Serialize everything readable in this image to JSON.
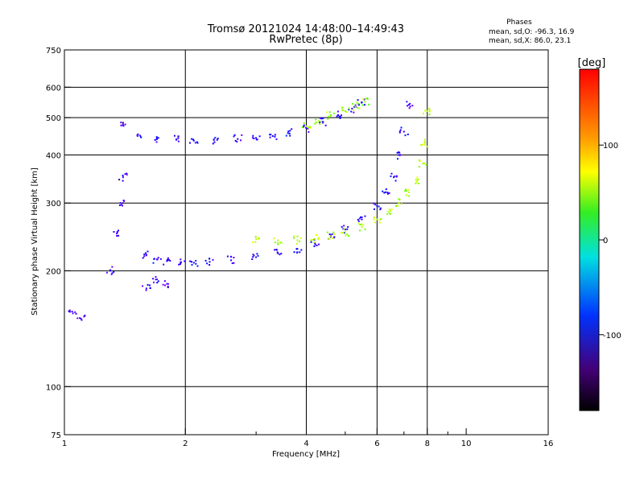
{
  "chart_data": {
    "type": "scatter",
    "title": "Tromsø 20121024 14:48:00–14:49:43",
    "subtitle": "RwPretec (8p)",
    "xlabel": "Frequency [MHz]",
    "ylabel": "Stationary phase Virtual Height [km]",
    "x_scale": "log",
    "y_scale": "log",
    "xlim": [
      1,
      16
    ],
    "ylim": [
      75,
      750
    ],
    "x_ticks": [
      1,
      2,
      4,
      6,
      8,
      10,
      16
    ],
    "x_tick_labels": [
      "1",
      "2",
      "4",
      "6",
      "8",
      "10",
      "16"
    ],
    "x_minor_ticks": [
      3,
      5,
      7,
      9
    ],
    "y_ticks": [
      75,
      100,
      200,
      300,
      400,
      500,
      600,
      750
    ],
    "y_tick_labels": [
      "75",
      "100",
      "200",
      "300",
      "400",
      "500",
      "600",
      "750"
    ],
    "x_grid": [
      2,
      4,
      6,
      8
    ],
    "y_grid": [
      100,
      200,
      300,
      400,
      500,
      600
    ],
    "stats": {
      "heading": "Phases",
      "o_line": "mean, sd,O: -96.3, 16.9",
      "x_line": "mean, sd,X:  86.0, 23.1"
    },
    "colorbar": {
      "label": "[deg]",
      "range": [
        -180,
        180
      ],
      "ticks": [
        100,
        0,
        -100
      ],
      "tick_labels": [
        "100",
        "0",
        "-100"
      ]
    },
    "series": [
      {
        "mode": "O",
        "traces": [
          {
            "x": [
              1.6,
              1.7,
              1.8,
              1.95,
              2.1,
              2.3,
              2.6,
              3.0,
              3.4,
              3.8,
              4.2,
              4.6,
              5.0,
              5.5,
              6.0,
              6.3,
              6.6,
              6.8,
              7.0,
              7.2
            ],
            "y": [
              220,
              214,
              212,
              210,
              210,
              211,
              213,
              217,
              222,
              228,
              236,
              245,
              256,
              272,
              295,
              320,
              350,
              400,
              460,
              540
            ],
            "phase": -100
          },
          {
            "x": [
              1.55,
              1.7,
              1.9,
              2.1,
              2.4,
              2.7,
              3.0,
              3.3,
              3.6,
              4.0,
              4.4,
              4.8,
              5.2,
              5.5
            ],
            "y": [
              445,
              440,
              438,
              436,
              438,
              440,
              443,
              448,
              456,
              470,
              488,
              508,
              528,
              548
            ],
            "phase": -100
          },
          {
            "x": [
              1.05,
              1.1,
              1.3,
              1.35,
              1.4,
              1.4,
              1.4,
              1.6,
              1.7,
              1.8
            ],
            "y": [
              155,
              150,
              200,
              250,
              300,
              350,
              480,
              180,
              190,
              185
            ],
            "phase": -110
          }
        ]
      },
      {
        "mode": "X",
        "traces": [
          {
            "x": [
              3.0,
              3.4,
              3.8,
              4.2,
              4.6,
              5.0,
              5.5,
              6.0,
              6.4,
              6.8,
              7.2,
              7.5,
              7.8,
              7.9,
              8.0
            ],
            "y": [
              242,
              240,
              240,
              242,
              246,
              252,
              260,
              272,
              285,
              300,
              320,
              345,
              380,
              430,
              520
            ],
            "phase": 90
          },
          {
            "x": [
              4.0,
              4.3,
              4.6,
              5.0,
              5.3,
              5.6
            ],
            "y": [
              475,
              490,
              505,
              520,
              535,
              550
            ],
            "phase": 85
          }
        ]
      }
    ]
  }
}
